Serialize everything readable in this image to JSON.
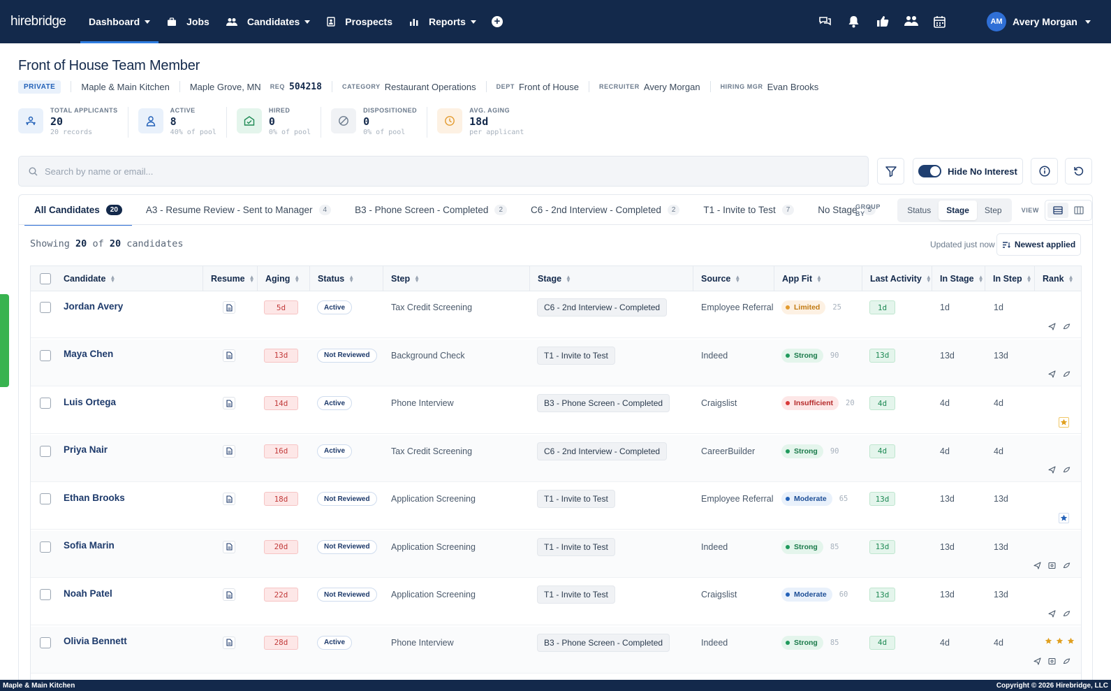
{
  "app": {
    "logo": "hirebridge"
  },
  "nav": {
    "items": [
      {
        "label": "Dashboard",
        "icon": "none",
        "caret": true,
        "active": true
      },
      {
        "label": "Jobs",
        "icon": "briefcase-icon",
        "caret": false
      },
      {
        "label": "Candidates",
        "icon": "users-icon",
        "caret": true
      },
      {
        "label": "Prospects",
        "icon": "id-card-icon",
        "caret": false
      },
      {
        "label": "Reports",
        "icon": "bar-chart-icon",
        "caret": true
      }
    ],
    "add_icon": "plus-circle-icon",
    "right_icons": [
      "chat-icon",
      "bell-icon",
      "thumbs-up-icon",
      "team-icon",
      "calendar-icon"
    ],
    "user": {
      "initials": "AM",
      "name": "Avery Morgan"
    }
  },
  "job": {
    "title": "Front of House Team Member",
    "visibility": "PRIVATE",
    "location_name": "Maple & Main Kitchen",
    "city": "Maple Grove, MN",
    "req_label": "REQ",
    "req": "504218",
    "category_label": "CATEGORY",
    "category": "Restaurant Operations",
    "dept_label": "DEPT",
    "dept": "Front of House",
    "recruiter_label": "RECRUITER",
    "recruiter": "Avery Morgan",
    "hiring_mgr_label": "HIRING MGR",
    "hiring_mgr": "Evan Brooks"
  },
  "stats": [
    {
      "label": "TOTAL APPLICANTS",
      "value": "20",
      "sub": "20 records",
      "icon": "applicants-icon",
      "color": "#e9f1fb",
      "iconColor": "#2361b8"
    },
    {
      "label": "ACTIVE",
      "value": "8",
      "sub": "40% of pool",
      "icon": "person-icon",
      "color": "#e9f1fb",
      "iconColor": "#2361b8"
    },
    {
      "label": "HIRED",
      "value": "0",
      "sub": "0% of pool",
      "icon": "hired-icon",
      "color": "#e4f5ec",
      "iconColor": "#1f8a55"
    },
    {
      "label": "DISPOSITIONED",
      "value": "0",
      "sub": "0% of pool",
      "icon": "ban-icon",
      "color": "#f0f2f5",
      "iconColor": "#6b7a8c"
    },
    {
      "label": "AVG. AGING",
      "value": "18d",
      "sub": "per applicant",
      "icon": "clock-icon",
      "color": "#fdf1e3",
      "iconColor": "#e39b2f"
    }
  ],
  "search": {
    "placeholder": "Search by name or email..."
  },
  "toolbar": {
    "hide_no_interest": "Hide No Interest",
    "hide_on": true
  },
  "tabs": [
    {
      "label": "All Candidates",
      "count": "20",
      "active": true
    },
    {
      "label": "A3 - Resume Review - Sent to Manager",
      "count": "4"
    },
    {
      "label": "B3 - Phone Screen - Completed",
      "count": "2"
    },
    {
      "label": "C6 - 2nd Interview - Completed",
      "count": "2"
    },
    {
      "label": "T1 - Invite to Test",
      "count": "7"
    },
    {
      "label": "No Stage",
      "count": "5"
    }
  ],
  "groupby": {
    "label": "GROUP BY",
    "options": [
      "Status",
      "Stage",
      "Step"
    ],
    "selected": "Stage",
    "view_label": "VIEW"
  },
  "list": {
    "showing_prefix": "Showing",
    "shown": "20",
    "of": "of",
    "total": "20",
    "suffix": "candidates",
    "updated": "Updated just now",
    "sort": "Newest applied"
  },
  "columns": [
    "Candidate",
    "Resume",
    "Aging",
    "Status",
    "Step",
    "Stage",
    "Source",
    "App Fit",
    "Last Activity",
    "In Stage",
    "In Step",
    "Rank"
  ],
  "rows": [
    {
      "name": "Jordan Avery",
      "aging": "5d",
      "status": "Active",
      "step": "Tax Credit Screening",
      "stage": "C6 - 2nd Interview - Completed",
      "source": "Employee Referral",
      "fit": "Limited",
      "fitColor": "#e39b2f",
      "fitBg": "#fdf1e3",
      "fitText": "#c27a12",
      "score": "25",
      "last": "1d",
      "in_stage": "1d",
      "in_step": "1d",
      "rank": "icons2"
    },
    {
      "name": "Maya Chen",
      "aging": "13d",
      "status": "Not Reviewed",
      "step": "Background Check",
      "stage": "T1 - Invite to Test",
      "source": "Indeed",
      "fit": "Strong",
      "fitColor": "#1f9a5c",
      "fitBg": "#e4f5ec",
      "fitText": "#1a7a4a",
      "score": "90",
      "last": "13d",
      "in_stage": "13d",
      "in_step": "13d",
      "rank": "icons2"
    },
    {
      "name": "Luis Ortega",
      "aging": "14d",
      "status": "Active",
      "step": "Phone Interview",
      "stage": "B3 - Phone Screen - Completed",
      "source": "Craigslist",
      "fit": "Insufficient",
      "fitColor": "#d93a3a",
      "fitBg": "#fde7e7",
      "fitText": "#b52a2a",
      "score": "20",
      "last": "4d",
      "in_stage": "4d",
      "in_step": "4d",
      "rank": "goldstar"
    },
    {
      "name": "Priya Nair",
      "aging": "16d",
      "status": "Active",
      "step": "Tax Credit Screening",
      "stage": "C6 - 2nd Interview - Completed",
      "source": "CareerBuilder",
      "fit": "Strong",
      "fitColor": "#1f9a5c",
      "fitBg": "#e4f5ec",
      "fitText": "#1a7a4a",
      "score": "90",
      "last": "4d",
      "in_stage": "4d",
      "in_step": "4d",
      "rank": "icons2"
    },
    {
      "name": "Ethan Brooks",
      "aging": "18d",
      "status": "Not Reviewed",
      "step": "Application Screening",
      "stage": "T1 - Invite to Test",
      "source": "Employee Referral",
      "fit": "Moderate",
      "fitColor": "#2361b8",
      "fitBg": "#e9f1fb",
      "fitText": "#1d4e96",
      "score": "65",
      "last": "13d",
      "in_stage": "13d",
      "in_step": "13d",
      "rank": "bluestar"
    },
    {
      "name": "Sofia Marin",
      "aging": "20d",
      "status": "Not Reviewed",
      "step": "Application Screening",
      "stage": "T1 - Invite to Test",
      "source": "Indeed",
      "fit": "Strong",
      "fitColor": "#1f9a5c",
      "fitBg": "#e4f5ec",
      "fitText": "#1a7a4a",
      "score": "85",
      "last": "13d",
      "in_stage": "13d",
      "in_step": "13d",
      "rank": "icons3"
    },
    {
      "name": "Noah Patel",
      "aging": "22d",
      "status": "Not Reviewed",
      "step": "Application Screening",
      "stage": "T1 - Invite to Test",
      "source": "Craigslist",
      "fit": "Moderate",
      "fitColor": "#2361b8",
      "fitBg": "#e9f1fb",
      "fitText": "#1d4e96",
      "score": "60",
      "last": "13d",
      "in_stage": "13d",
      "in_step": "13d",
      "rank": "icons2"
    },
    {
      "name": "Olivia Bennett",
      "aging": "28d",
      "status": "Active",
      "step": "Phone Interview",
      "stage": "B3 - Phone Screen - Completed",
      "source": "Indeed",
      "fit": "Strong",
      "fitColor": "#1f9a5c",
      "fitBg": "#e4f5ec",
      "fitText": "#1a7a4a",
      "score": "85",
      "last": "4d",
      "in_stage": "4d",
      "in_step": "4d",
      "rank": "stars3"
    }
  ],
  "footer": {
    "left": "Maple & Main Kitchen",
    "right": "Copyright © 2026 Hirebridge, LLC"
  }
}
